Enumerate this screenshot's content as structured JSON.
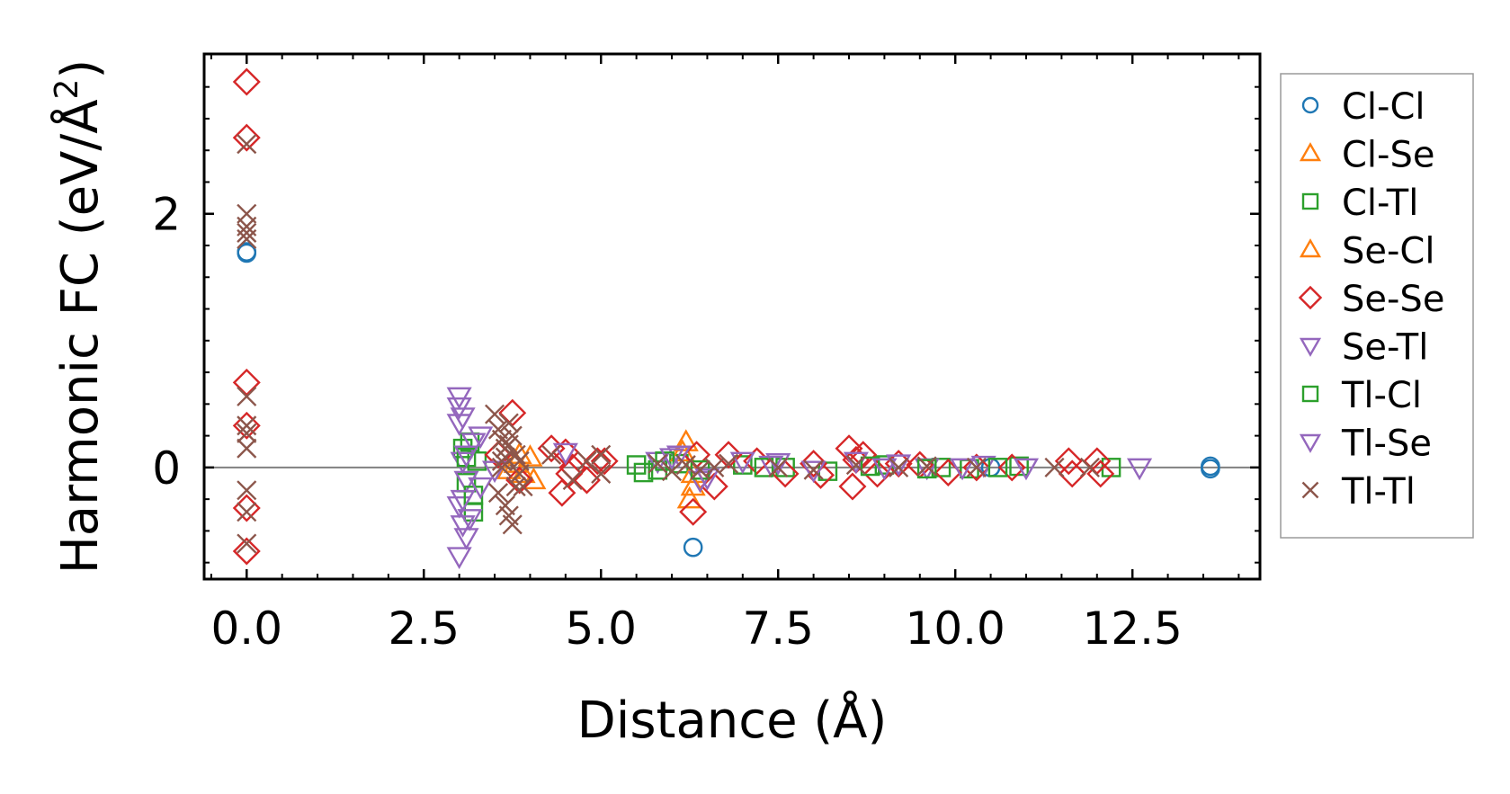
{
  "chart_data": {
    "type": "scatter",
    "title": "",
    "xlabel": "Distance (Å)",
    "ylabel_main": "Harmonic FC (eV/Å",
    "ylabel_sup": "2",
    "ylabel_close": ")",
    "xlim": [
      -0.6,
      14.3
    ],
    "ylim": [
      -0.88,
      3.26
    ],
    "xticks": [
      0.0,
      2.5,
      5.0,
      7.5,
      10.0,
      12.5
    ],
    "xtick_labels": [
      "0.0",
      "2.5",
      "5.0",
      "7.5",
      "10.0",
      "12.5"
    ],
    "yticks": [
      0,
      2
    ],
    "ytick_labels": [
      "0",
      "2"
    ],
    "zero_line": 0,
    "legend_position": "right, outside",
    "series": [
      {
        "name": "Cl-Cl",
        "marker": "circle",
        "color": "#1f77b4",
        "x": [
          0,
          0,
          6.3,
          10.5,
          13.6,
          13.6
        ],
        "y": [
          1.7,
          1.69,
          -0.63,
          0.0,
          0.01,
          -0.01
        ]
      },
      {
        "name": "Cl-Se",
        "marker": "triangle-up",
        "color": "#ff7f0e",
        "x": [
          3.8,
          3.9,
          4.0,
          6.2,
          6.25,
          6.3
        ],
        "y": [
          0.03,
          -0.05,
          0.08,
          0.2,
          -0.25,
          -0.15
        ]
      },
      {
        "name": "Cl-Tl",
        "marker": "square",
        "color": "#2ca02c",
        "x": [
          3.05,
          3.1,
          3.15,
          3.2,
          3.25,
          5.5,
          5.8,
          6.1,
          7.0,
          7.6,
          8.2,
          9.0,
          9.8,
          10.2,
          10.9,
          12.2
        ],
        "y": [
          0.15,
          -0.12,
          0.2,
          -0.35,
          0.05,
          0.02,
          -0.02,
          0.03,
          0.02,
          0.0,
          -0.03,
          0.02,
          0.0,
          -0.01,
          0.01,
          0.0
        ]
      },
      {
        "name": "Se-Cl",
        "marker": "triangle-up",
        "color": "#ff7f0e",
        "x": [
          3.7,
          3.85,
          4.05,
          6.15,
          6.3
        ],
        "y": [
          -0.02,
          0.1,
          -0.1,
          0.12,
          -0.05
        ]
      },
      {
        "name": "Se-Se",
        "marker": "diamond",
        "color": "#d62728",
        "x": [
          0,
          0,
          0,
          0,
          0,
          0,
          3.55,
          3.75,
          3.85,
          4.3,
          4.45,
          4.5,
          4.55,
          4.6,
          4.8,
          4.95,
          5.05,
          6.3,
          6.35,
          6.6,
          6.8,
          7.2,
          7.6,
          8.0,
          8.1,
          8.5,
          8.55,
          8.6,
          8.7,
          8.9,
          9.2,
          9.5,
          9.9,
          10.3,
          10.8,
          11.6,
          11.65,
          12.0,
          12.05
        ],
        "y": [
          3.04,
          2.6,
          0.67,
          0.33,
          -0.32,
          -0.66,
          0.1,
          0.43,
          -0.1,
          0.15,
          -0.2,
          0.12,
          -0.05,
          0.0,
          -0.1,
          0.05,
          0.05,
          -0.35,
          0.1,
          -0.15,
          0.1,
          0.05,
          -0.05,
          0.03,
          -0.06,
          0.15,
          -0.15,
          0.06,
          0.1,
          -0.05,
          0.03,
          0.02,
          -0.04,
          0.0,
          0.0,
          0.05,
          -0.05,
          0.05,
          -0.05
        ]
      },
      {
        "name": "Se-Tl",
        "marker": "triangle-down",
        "color": "#9467bd",
        "x": [
          3.0,
          3.0,
          3.05,
          3.0,
          3.05,
          3.1,
          3.0,
          3.05,
          3.1,
          3.2,
          3.5,
          4.5,
          5.8,
          6.1,
          6.4,
          7.0,
          7.4,
          8.0,
          8.6,
          9.2,
          9.6,
          10.4,
          11.0,
          12.6
        ],
        "y": [
          0.56,
          0.48,
          0.4,
          -0.3,
          -0.45,
          -0.55,
          -0.7,
          0.05,
          -0.1,
          0.2,
          -0.02,
          0.12,
          0.05,
          0.1,
          -0.1,
          0.05,
          0.02,
          -0.02,
          0.05,
          0.03,
          0.0,
          0.02,
          0.0,
          0.0
        ]
      },
      {
        "name": "Tl-Cl",
        "marker": "square",
        "color": "#2ca02c",
        "x": [
          3.1,
          3.2,
          5.6,
          5.9,
          6.4,
          7.3,
          8.8,
          9.6,
          10.6
        ],
        "y": [
          0.08,
          -0.22,
          -0.04,
          0.05,
          -0.02,
          0.0,
          0.01,
          -0.01,
          0.0
        ]
      },
      {
        "name": "Tl-Se",
        "marker": "triangle-down",
        "color": "#9467bd",
        "x": [
          3.0,
          3.05,
          3.1,
          3.15,
          3.3,
          3.3,
          6.0,
          6.5,
          7.5,
          9.0,
          10.1
        ],
        "y": [
          0.35,
          -0.25,
          0.1,
          -0.4,
          0.25,
          -0.15,
          0.08,
          -0.08,
          0.04,
          0.0,
          0.0
        ]
      },
      {
        "name": "Tl-Tl",
        "marker": "x",
        "color": "#8c564b",
        "x": [
          0,
          0,
          0,
          0,
          0,
          0,
          0,
          0,
          0,
          0,
          0,
          0,
          3.5,
          3.55,
          3.6,
          3.65,
          3.6,
          3.7,
          3.75,
          3.8,
          3.85,
          3.9,
          3.55,
          3.65,
          3.7,
          3.75,
          3.8,
          3.6,
          3.65,
          3.7,
          3.85,
          4.3,
          4.6,
          4.8,
          5.0,
          5.0,
          5.8,
          6.0,
          6.2,
          6.4,
          6.6,
          6.8,
          7.5,
          8.0,
          8.6,
          9.2,
          9.6,
          10.3,
          11.4,
          11.9
        ],
        "y": [
          2.55,
          2.0,
          1.9,
          1.85,
          1.8,
          0.56,
          0.33,
          0.27,
          0.15,
          -0.18,
          -0.35,
          -0.6,
          0.42,
          0.3,
          0.22,
          0.15,
          0.05,
          0.35,
          0.25,
          0.1,
          -0.05,
          -0.15,
          -0.2,
          -0.3,
          -0.38,
          -0.45,
          -0.15,
          0.0,
          0.08,
          0.18,
          0.05,
          0.1,
          -0.1,
          0.05,
          -0.05,
          0.1,
          0.03,
          -0.03,
          0.02,
          -0.02,
          0.0,
          0.03,
          0.0,
          -0.02,
          0.02,
          0.0,
          0.01,
          0.0,
          0.0,
          0.0
        ]
      }
    ]
  }
}
